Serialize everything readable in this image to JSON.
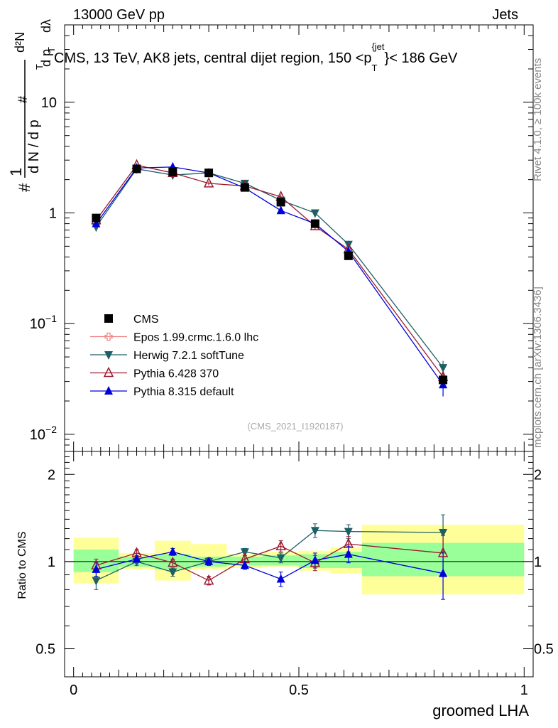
{
  "header": {
    "left": "13000 GeV pp",
    "right": "Jets",
    "title": "CMS, 13 TeV, AK8 jets, central dijet region, 150 <p",
    "title_sub": "T",
    "title_sup": "{jet",
    "title_end": "}< 186 GeV"
  },
  "side": {
    "rivet": "Rivet 4.1.0, ≥ 100k events",
    "mcplots": "mcplots.cern.ch [arXiv:1306.3436]"
  },
  "watermark": "(CMS_2021_I1920187)",
  "y_axis_top": {
    "p1": "#",
    "p2": "1",
    "p3": "d N / d p",
    "p4": "T",
    "p5": "#",
    "p6": "d p",
    "p7": "T",
    "p8": "d²N",
    "p9": "dλ",
    "ticks": [
      {
        "v": 0.01,
        "m": "10",
        "e": "−2"
      },
      {
        "v": 0.1,
        "m": "10",
        "e": "−1"
      },
      {
        "v": 1,
        "m": "1",
        "e": ""
      },
      {
        "v": 10,
        "m": "10",
        "e": ""
      }
    ]
  },
  "y_axis_bottom": {
    "label": "Ratio to CMS",
    "ticks": [
      {
        "v": 0.5,
        "t": "0.5"
      },
      {
        "v": 1,
        "t": "1"
      },
      {
        "v": 2,
        "t": "2"
      }
    ]
  },
  "x_axis": {
    "label": "groomed LHA",
    "ticks": [
      {
        "v": 0,
        "t": "0"
      },
      {
        "v": 0.5,
        "t": "0.5"
      },
      {
        "v": 1,
        "t": "1"
      }
    ]
  },
  "legend": [
    {
      "key": "cms",
      "label": "CMS",
      "color": "#000000",
      "marker": "square"
    },
    {
      "key": "epos",
      "label": "Epos 1.99.crmc.1.6.0 lhc",
      "color": "#f08080",
      "marker": "cross"
    },
    {
      "key": "herwig",
      "label": "Herwig 7.2.1 softTune",
      "color": "#1e5f66",
      "marker": "tri-down"
    },
    {
      "key": "py6",
      "label": "Pythia 6.428 370",
      "color": "#9b1b30",
      "marker": "tri-up-open"
    },
    {
      "key": "py8",
      "label": "Pythia 8.315 default",
      "color": "#0000dd",
      "marker": "tri-up"
    }
  ],
  "chart_data": {
    "type": "line",
    "title": "CMS, 13 TeV, AK8 jets, central dijet region, 150 < pT jet < 186 GeV",
    "xlabel": "groomed LHA",
    "ylabel": "(1 / dN/dpT) d²N/(dpT dλ)",
    "yscale": "log",
    "xlim": [
      -0.02,
      1.02
    ],
    "ylim": [
      0.007,
      50
    ],
    "ratio_ylim": [
      0.4,
      2.4
    ],
    "bin_edges": [
      0,
      0.1,
      0.18,
      0.26,
      0.34,
      0.42,
      0.5,
      0.57,
      0.64,
      1.0
    ],
    "x": [
      0.05,
      0.14,
      0.22,
      0.3,
      0.38,
      0.46,
      0.536,
      0.61,
      0.82
    ],
    "series": [
      {
        "name": "CMS",
        "key": "cms",
        "values": [
          0.9,
          2.5,
          2.35,
          2.3,
          1.7,
          1.25,
          0.8,
          0.41,
          0.031
        ]
      },
      {
        "name": "Herwig 7.2.1 softTune",
        "key": "herwig",
        "values": [
          0.75,
          2.5,
          2.2,
          2.3,
          1.85,
          1.3,
          1.0,
          0.52,
          0.04
        ],
        "errors": [
          0.07,
          0.1,
          0.1,
          0.1,
          0.1,
          0.08,
          0.05,
          0.04,
          0.006
        ]
      },
      {
        "name": "Pythia 6.428 370",
        "key": "py6",
        "values": [
          0.86,
          2.7,
          2.3,
          1.85,
          1.75,
          1.4,
          0.76,
          0.47,
          0.033
        ],
        "errors": [
          0.06,
          0.1,
          0.1,
          0.08,
          0.08,
          0.07,
          0.05,
          0.04,
          0.005
        ]
      },
      {
        "name": "Pythia 8.315 default",
        "key": "py8",
        "values": [
          0.8,
          2.55,
          2.6,
          2.3,
          1.68,
          1.05,
          0.8,
          0.45,
          0.028
        ],
        "errors": [
          0.06,
          0.1,
          0.1,
          0.1,
          0.08,
          0.07,
          0.05,
          0.04,
          0.006
        ]
      }
    ],
    "ratio": {
      "band_inner": [
        [
          0.92,
          1.1
        ],
        [
          0.96,
          1.04
        ],
        [
          0.94,
          1.06
        ],
        [
          0.96,
          1.04
        ],
        [
          0.97,
          1.04
        ],
        [
          0.97,
          1.05
        ],
        [
          0.95,
          1.06
        ],
        [
          0.95,
          1.08
        ],
        [
          0.89,
          1.16
        ]
      ],
      "band_outer": [
        [
          0.84,
          1.21
        ],
        [
          0.94,
          1.07
        ],
        [
          0.86,
          1.18
        ],
        [
          0.94,
          1.15
        ],
        [
          0.95,
          1.06
        ],
        [
          0.96,
          1.08
        ],
        [
          0.93,
          1.09
        ],
        [
          0.91,
          1.12
        ],
        [
          0.77,
          1.34
        ]
      ],
      "series": [
        {
          "key": "herwig",
          "values": [
            0.86,
            1.0,
            0.92,
            1.0,
            1.08,
            1.03,
            1.28,
            1.27,
            1.26
          ],
          "errors": [
            0.06,
            0.03,
            0.03,
            0.03,
            0.03,
            0.04,
            0.07,
            0.07,
            0.19
          ]
        },
        {
          "key": "py6",
          "values": [
            0.97,
            1.07,
            0.99,
            0.86,
            1.02,
            1.13,
            0.99,
            1.15,
            1.07
          ],
          "errors": [
            0.05,
            0.03,
            0.03,
            0.03,
            0.03,
            0.05,
            0.06,
            0.07,
            0.16
          ]
        },
        {
          "key": "py8",
          "values": [
            0.94,
            1.02,
            1.08,
            1.0,
            0.97,
            0.87,
            1.01,
            1.06,
            0.91
          ],
          "errors": [
            0.05,
            0.03,
            0.03,
            0.03,
            0.03,
            0.05,
            0.06,
            0.07,
            0.17
          ]
        }
      ]
    }
  }
}
